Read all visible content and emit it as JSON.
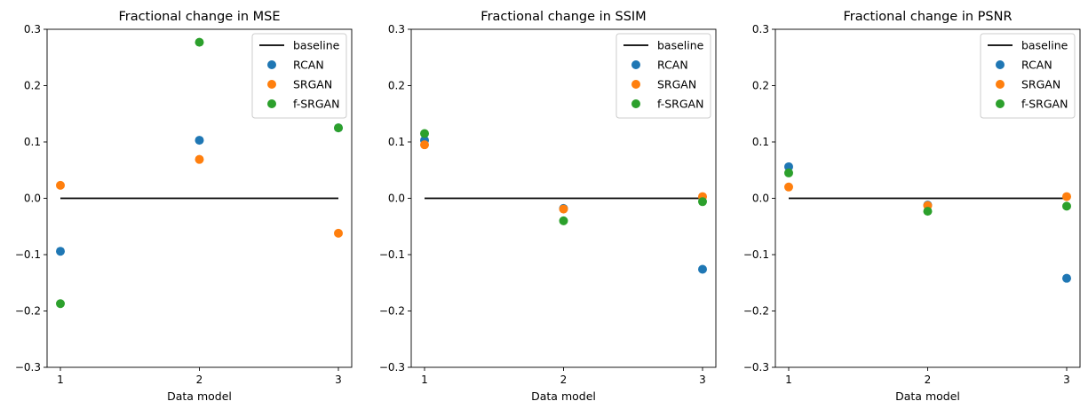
{
  "chart_data": [
    {
      "type": "scatter",
      "title": "Fractional change in MSE",
      "xlabel": "Data model",
      "ylabel": "",
      "xticks": [
        1,
        2,
        3
      ],
      "yticks": [
        -0.3,
        -0.2,
        -0.1,
        0.0,
        0.1,
        0.2,
        0.3
      ],
      "ylim": [
        -0.3,
        0.3
      ],
      "legend_position": "top-right",
      "baseline": {
        "name": "baseline",
        "x": [
          1,
          3
        ],
        "y": [
          0,
          0
        ],
        "color": "#000000"
      },
      "series": [
        {
          "name": "RCAN",
          "color": "#1f77b4",
          "x": [
            1,
            2,
            3
          ],
          "y": [
            -0.094,
            0.103,
            0.125
          ]
        },
        {
          "name": "SRGAN",
          "color": "#ff7f0e",
          "x": [
            1,
            2,
            3
          ],
          "y": [
            0.023,
            0.069,
            -0.062
          ]
        },
        {
          "name": "f-SRGAN",
          "color": "#2ca02c",
          "x": [
            1,
            2,
            3
          ],
          "y": [
            -0.187,
            0.277,
            0.125
          ]
        }
      ]
    },
    {
      "type": "scatter",
      "title": "Fractional change in SSIM",
      "xlabel": "Data model",
      "ylabel": "",
      "xticks": [
        1,
        2,
        3
      ],
      "yticks": [
        -0.3,
        -0.2,
        -0.1,
        0.0,
        0.1,
        0.2,
        0.3
      ],
      "ylim": [
        -0.3,
        0.3
      ],
      "legend_position": "top-right",
      "baseline": {
        "name": "baseline",
        "x": [
          1,
          3
        ],
        "y": [
          0,
          0
        ],
        "color": "#000000"
      },
      "series": [
        {
          "name": "RCAN",
          "color": "#1f77b4",
          "x": [
            1,
            2,
            3
          ],
          "y": [
            0.103,
            -0.018,
            -0.126
          ]
        },
        {
          "name": "SRGAN",
          "color": "#ff7f0e",
          "x": [
            1,
            2,
            3
          ],
          "y": [
            0.095,
            -0.019,
            0.003
          ]
        },
        {
          "name": "f-SRGAN",
          "color": "#2ca02c",
          "x": [
            1,
            2,
            3
          ],
          "y": [
            0.115,
            -0.04,
            -0.006
          ]
        }
      ]
    },
    {
      "type": "scatter",
      "title": "Fractional change in PSNR",
      "xlabel": "Data model",
      "ylabel": "",
      "xticks": [
        1,
        2,
        3
      ],
      "yticks": [
        -0.3,
        -0.2,
        -0.1,
        0.0,
        0.1,
        0.2,
        0.3
      ],
      "ylim": [
        -0.3,
        0.3
      ],
      "legend_position": "top-right",
      "baseline": {
        "name": "baseline",
        "x": [
          1,
          3
        ],
        "y": [
          0,
          0
        ],
        "color": "#000000"
      },
      "series": [
        {
          "name": "RCAN",
          "color": "#1f77b4",
          "x": [
            1,
            2,
            3
          ],
          "y": [
            0.056,
            -0.012,
            -0.142
          ]
        },
        {
          "name": "SRGAN",
          "color": "#ff7f0e",
          "x": [
            1,
            2,
            3
          ],
          "y": [
            0.02,
            -0.013,
            0.003
          ]
        },
        {
          "name": "f-SRGAN",
          "color": "#2ca02c",
          "x": [
            1,
            2,
            3
          ],
          "y": [
            0.045,
            -0.023,
            -0.014
          ]
        }
      ]
    }
  ]
}
